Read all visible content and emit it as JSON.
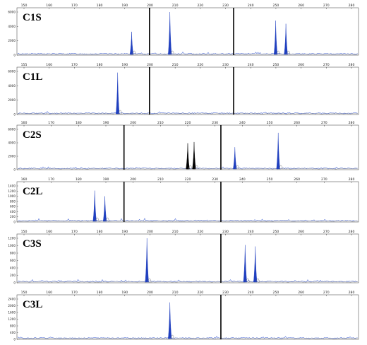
{
  "colors": {
    "peak": "#1f3fbf",
    "peak_alt": "#000000",
    "trace": "#2a4fd0",
    "ruler": "#000000",
    "frame": "#555555"
  },
  "chart_data": [
    {
      "type": "line",
      "label": "C1S",
      "x_ticks": [
        "150",
        "160",
        "170",
        "180",
        "190",
        "200",
        "210",
        "220",
        "230",
        "240",
        "250",
        "260",
        "270",
        "280"
      ],
      "y_ticks": [
        "6000",
        "4000",
        "2000",
        "0"
      ],
      "xlim": [
        150,
        284
      ],
      "ylim": [
        0,
        7000
      ],
      "markers_bp": [
        202,
        235
      ],
      "peaks": [
        {
          "x": 195.0,
          "height": 3800,
          "color": "blue"
        },
        {
          "x": 210.0,
          "height": 7000,
          "color": "blue"
        },
        {
          "x": 251.5,
          "height": 5600,
          "color": "blue"
        },
        {
          "x": 255.5,
          "height": 5100,
          "color": "blue"
        }
      ]
    },
    {
      "type": "line",
      "label": "C1L",
      "x_ticks": [
        "155",
        "160",
        "170",
        "180",
        "190",
        "200",
        "210",
        "220",
        "230",
        "240",
        "250",
        "260",
        "270",
        "280"
      ],
      "y_ticks": [
        "6000",
        "4000",
        "2000",
        "0"
      ],
      "xlim": [
        150,
        284
      ],
      "ylim": [
        0,
        7000
      ],
      "markers_bp": [
        202,
        235
      ],
      "peaks": [
        {
          "x": 189.5,
          "height": 6800,
          "color": "blue"
        }
      ]
    },
    {
      "type": "line",
      "label": "C2S",
      "x_ticks": [
        "160",
        "170",
        "180",
        "190",
        "200",
        "210",
        "220",
        "230",
        "240",
        "250",
        "260",
        "270",
        "280"
      ],
      "y_ticks": [
        "6000",
        "4000",
        "2000",
        "0"
      ],
      "xlim": [
        155,
        289
      ],
      "ylim": [
        0,
        7000
      ],
      "markers_bp": [
        197,
        235
      ],
      "peaks": [
        {
          "x": 222.0,
          "height": 4600,
          "color": "black"
        },
        {
          "x": 224.5,
          "height": 4800,
          "color": "black"
        },
        {
          "x": 240.5,
          "height": 3900,
          "color": "blue"
        },
        {
          "x": 257.5,
          "height": 6400,
          "color": "blue"
        }
      ]
    },
    {
      "type": "line",
      "label": "C2L",
      "x_ticks": [
        "160",
        "170",
        "180",
        "190",
        "200",
        "210",
        "220",
        "230",
        "240",
        "250",
        "260",
        "270",
        "280"
      ],
      "y_ticks": [
        "1400",
        "1200",
        "1000",
        "800",
        "600",
        "400",
        "200",
        "0"
      ],
      "xlim": [
        155,
        289
      ],
      "ylim": [
        0,
        1400
      ],
      "markers_bp": [
        197,
        235
      ],
      "peaks": [
        {
          "x": 185.5,
          "height": 1220,
          "color": "blue"
        },
        {
          "x": 189.5,
          "height": 1000,
          "color": "blue"
        }
      ]
    },
    {
      "type": "line",
      "label": "C3S",
      "x_ticks": [
        "150",
        "160",
        "170",
        "180",
        "190",
        "200",
        "210",
        "220",
        "230",
        "240",
        "250",
        "260",
        "270",
        "280"
      ],
      "y_ticks": [
        "1200",
        "1000",
        "800",
        "600",
        "400",
        "200",
        "0"
      ],
      "xlim": [
        150,
        284
      ],
      "ylim": [
        0,
        1200
      ],
      "markers_bp": [
        230
      ],
      "peaks": [
        {
          "x": 201.0,
          "height": 1200,
          "color": "blue"
        },
        {
          "x": 239.5,
          "height": 1020,
          "color": "blue"
        },
        {
          "x": 243.5,
          "height": 980,
          "color": "blue"
        }
      ]
    },
    {
      "type": "line",
      "label": "C3L",
      "x_ticks": [
        "150",
        "160",
        "170",
        "180",
        "190",
        "200",
        "210",
        "220",
        "230",
        "240",
        "250",
        "260",
        "270",
        "280"
      ],
      "y_ticks": [
        "2400",
        "2000",
        "1600",
        "1200",
        "800",
        "400",
        "0"
      ],
      "xlim": [
        150,
        284
      ],
      "ylim": [
        0,
        2400
      ],
      "markers_bp": [
        230
      ],
      "peaks": [
        {
          "x": 210.0,
          "height": 2200,
          "color": "blue"
        }
      ]
    }
  ]
}
